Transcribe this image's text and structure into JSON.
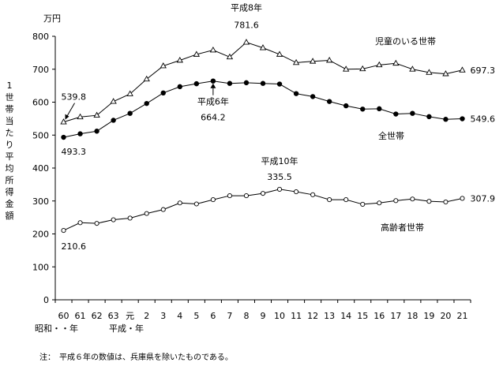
{
  "chart_data": {
    "type": "line",
    "unit_label": "万円",
    "ylabel": "1世帯当たり平均所得金額",
    "ylim": [
      0,
      800
    ],
    "yticks": [
      "0",
      "100",
      "200",
      "300",
      "400",
      "500",
      "600",
      "700",
      "800"
    ],
    "x_tick_labels": [
      "60",
      "61",
      "62",
      "63",
      "元",
      "2",
      "3",
      "4",
      "5",
      "6",
      "7",
      "8",
      "9",
      "10",
      "11",
      "12",
      "13",
      "14",
      "15",
      "16",
      "17",
      "18",
      "19",
      "20",
      "21"
    ],
    "x_era_labels": [
      "昭和・・年",
      "平成・年"
    ],
    "grid": false,
    "series": [
      {
        "name": "児童のいる世帯",
        "marker": "open-triangle",
        "values": [
          539.8,
          555,
          560,
          602,
          625,
          670,
          710,
          727,
          745,
          758,
          737,
          781.6,
          765,
          745,
          720,
          724,
          727,
          700,
          701,
          713,
          718,
          700,
          690,
          686,
          697.3
        ]
      },
      {
        "name": "全世帯",
        "marker": "filled-circle",
        "values": [
          493.3,
          504,
          512,
          545,
          566,
          596,
          628,
          647,
          656,
          664.2,
          657,
          659,
          657,
          655,
          626,
          617,
          602,
          589,
          579,
          580,
          564,
          566,
          556,
          548,
          549.6
        ]
      },
      {
        "name": "高齢者世帯",
        "marker": "open-circle",
        "values": [
          210.6,
          234,
          232,
          243,
          248,
          262,
          274,
          294,
          291,
          304,
          316,
          316,
          323,
          335.5,
          328,
          319,
          304,
          304,
          290,
          294,
          301,
          306,
          299,
          297,
          307.9
        ]
      }
    ],
    "annotations": {
      "tri_first": "539.8",
      "tri_peak_year": "平成8年",
      "tri_peak_val": "781.6",
      "tri_last": "697.3",
      "all_first": "493.3",
      "all_peak_year": "平成6年",
      "all_peak_val": "664.2",
      "all_last": "549.6",
      "old_first": "210.6",
      "old_peak_year": "平成10年",
      "old_peak_val": "335.5",
      "old_last": "307.9"
    }
  },
  "note": "注：　平成６年の数値は、兵庫県を除いたものである。"
}
